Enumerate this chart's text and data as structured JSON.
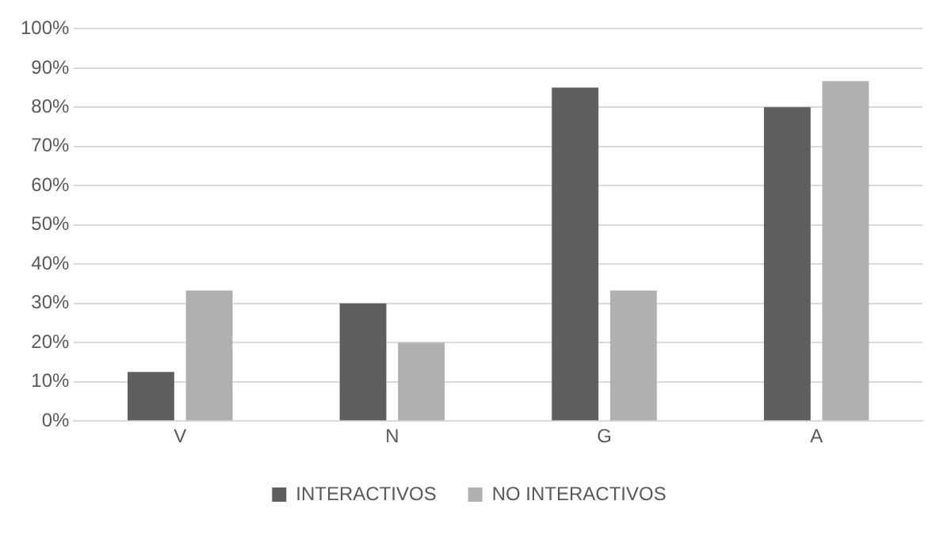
{
  "chart_data": {
    "type": "bar",
    "categories": [
      "V",
      "N",
      "G",
      "A"
    ],
    "series": [
      {
        "name": "INTERACTIVOS",
        "color": "#5f5f5f",
        "values": [
          12.5,
          30,
          85,
          80
        ]
      },
      {
        "name": "NO INTERACTIVOS",
        "color": "#b0b0b0",
        "values": [
          33.3,
          20,
          33.3,
          86.7
        ]
      }
    ],
    "ylim": [
      0,
      100
    ],
    "yticks": [
      {
        "value": 0,
        "label": "0%"
      },
      {
        "value": 10,
        "label": "10%"
      },
      {
        "value": 20,
        "label": "20%"
      },
      {
        "value": 30,
        "label": "30%"
      },
      {
        "value": 40,
        "label": "40%"
      },
      {
        "value": 50,
        "label": "50%"
      },
      {
        "value": 60,
        "label": "60%"
      },
      {
        "value": 70,
        "label": "70%"
      },
      {
        "value": 80,
        "label": "80%"
      },
      {
        "value": 90,
        "label": "90%"
      },
      {
        "value": 100,
        "label": "100%"
      }
    ],
    "grid": "y",
    "legend": "bottom"
  }
}
